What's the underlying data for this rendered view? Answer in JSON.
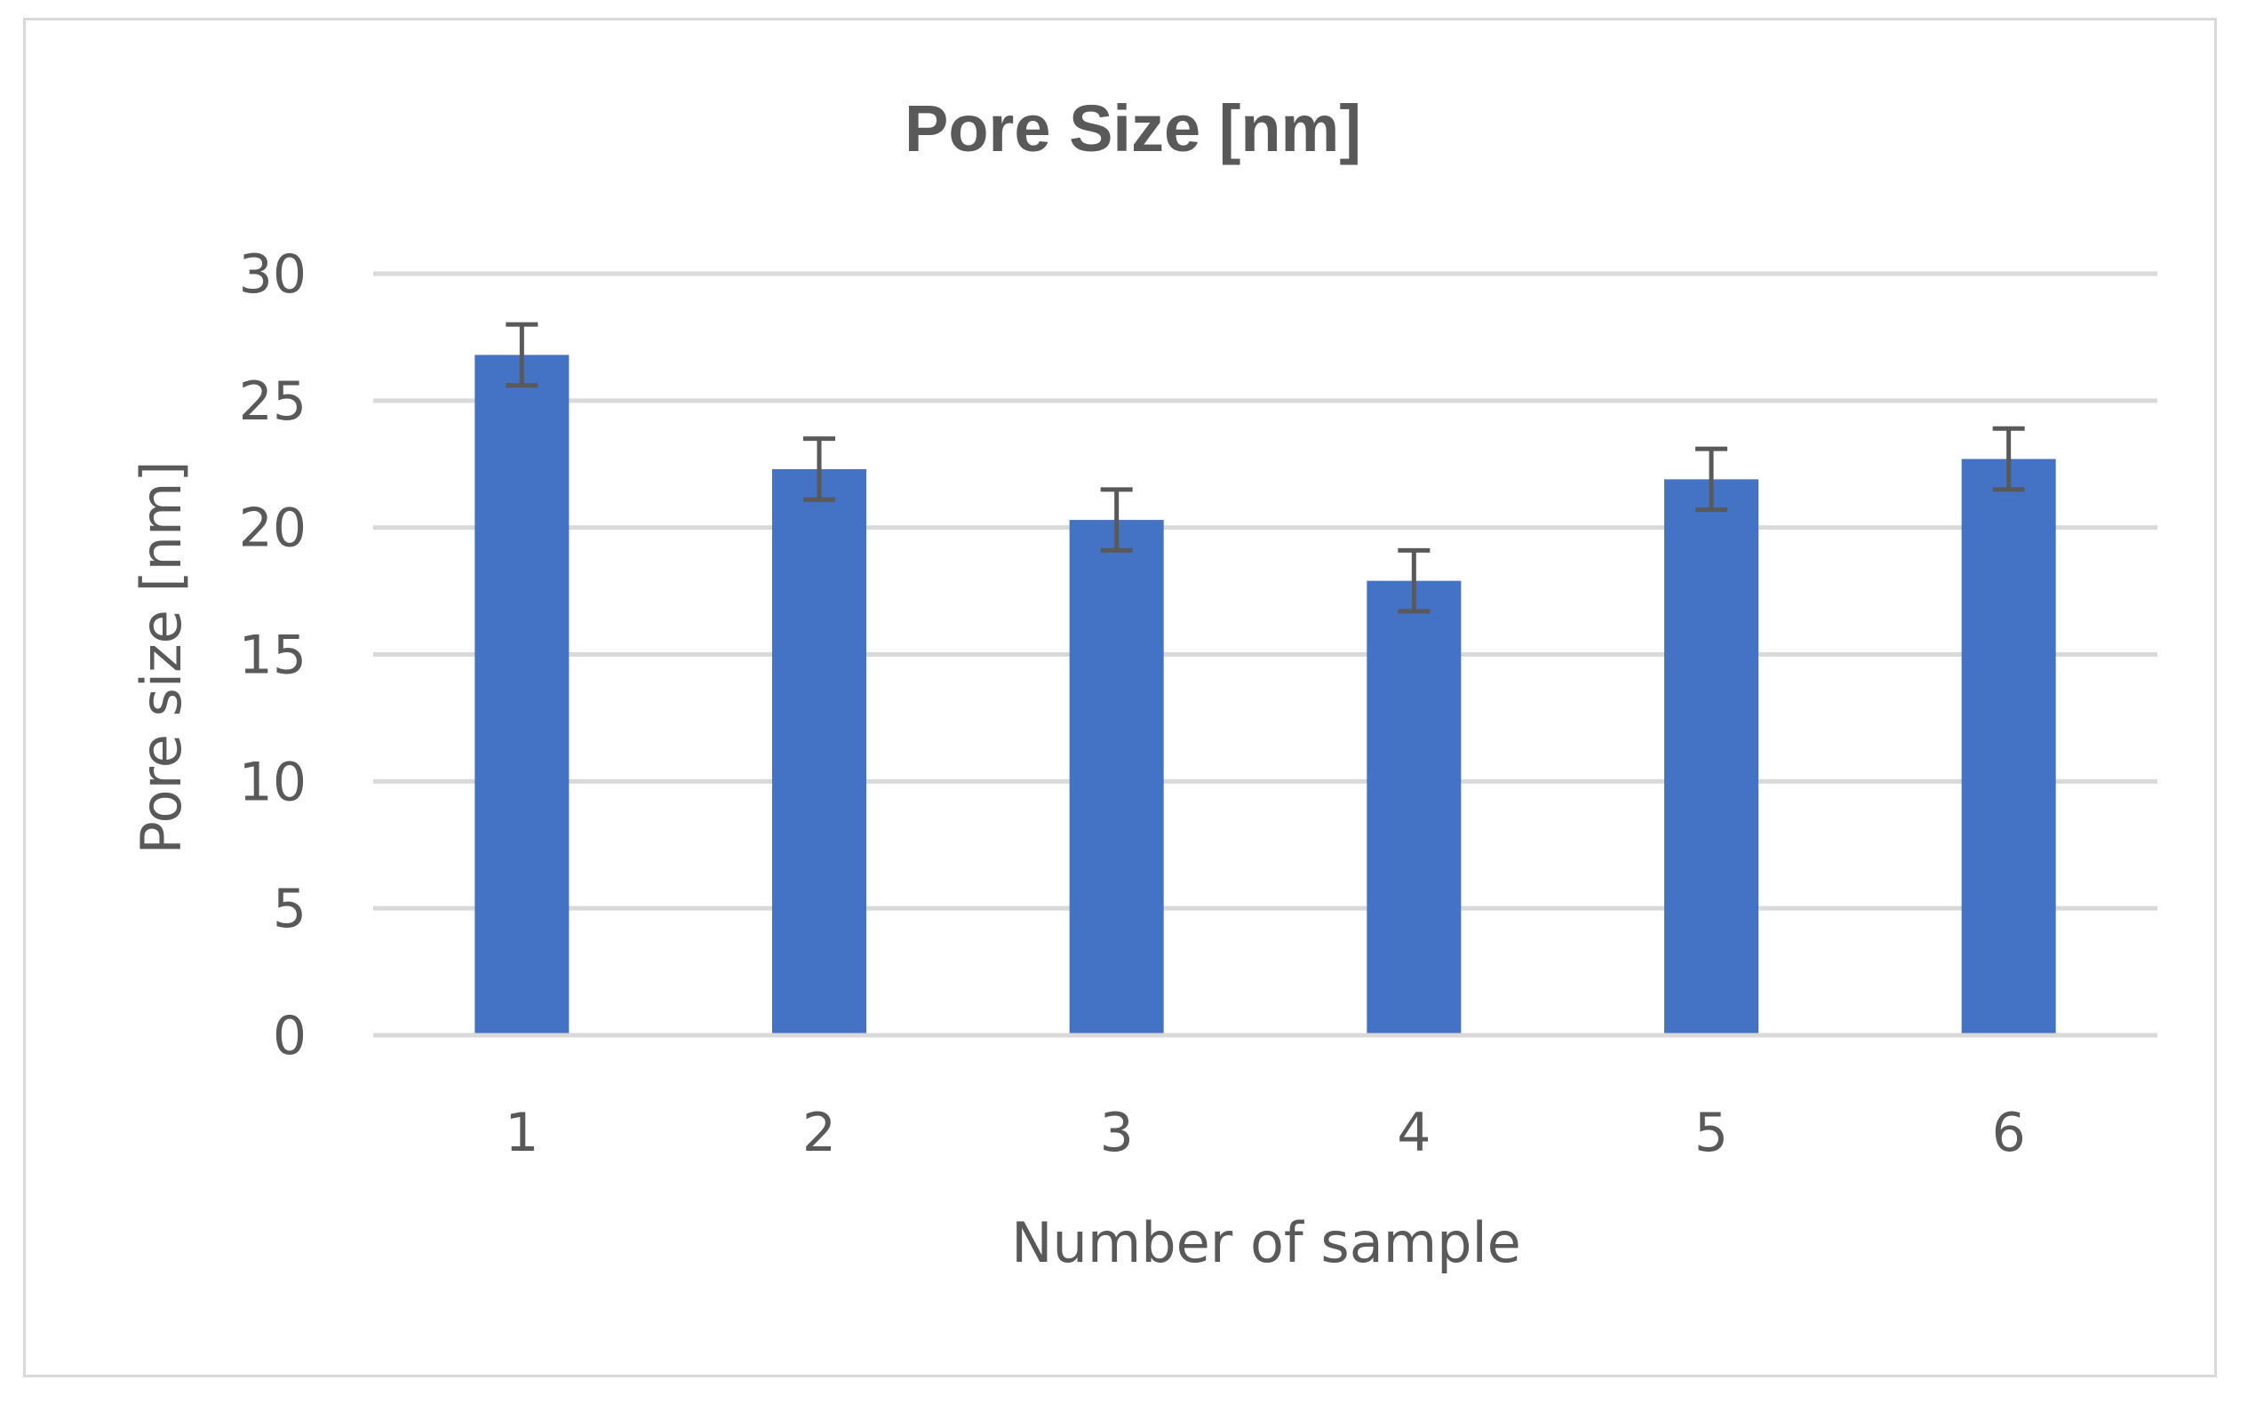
{
  "chart_data": {
    "type": "bar",
    "title": "Pore Size [nm]",
    "xlabel": "Number of sample",
    "ylabel": "Pore size [nm]",
    "categories": [
      "1",
      "2",
      "3",
      "4",
      "5",
      "6"
    ],
    "values": [
      26.8,
      22.3,
      20.3,
      17.9,
      21.9,
      22.7
    ],
    "error": [
      1.2,
      1.2,
      1.2,
      1.2,
      1.2,
      1.2
    ],
    "ylim": [
      0,
      30
    ],
    "yticks": [
      "0",
      "5",
      "10",
      "15",
      "20",
      "25",
      "30"
    ],
    "grid": true,
    "bar_color": "#4472c4",
    "error_bar_color": "#595959",
    "grid_color": "#d9d9d9"
  }
}
